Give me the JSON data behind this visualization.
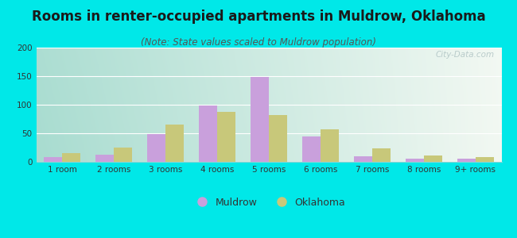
{
  "title": "Rooms in renter-occupied apartments in Muldrow, Oklahoma",
  "subtitle": "(Note: State values scaled to Muldrow population)",
  "categories": [
    "1 room",
    "2 rooms",
    "3 rooms",
    "4 rooms",
    "5 rooms",
    "6 rooms",
    "7 rooms",
    "8 rooms",
    "9+ rooms"
  ],
  "muldrow_values": [
    8,
    12,
    48,
    98,
    148,
    44,
    10,
    5,
    5
  ],
  "oklahoma_values": [
    15,
    25,
    65,
    88,
    82,
    57,
    24,
    11,
    8
  ],
  "muldrow_color": "#c9a0dc",
  "oklahoma_color": "#c8c87a",
  "bar_width": 0.35,
  "ylim": [
    0,
    200
  ],
  "yticks": [
    0,
    50,
    100,
    150,
    200
  ],
  "background_color": "#00e8e8",
  "title_fontsize": 12,
  "subtitle_fontsize": 8.5,
  "tick_fontsize": 7.5,
  "legend_fontsize": 9,
  "watermark": "City-Data.com",
  "grad_left": "#a8dcd0",
  "grad_right": "#f0f8f0"
}
